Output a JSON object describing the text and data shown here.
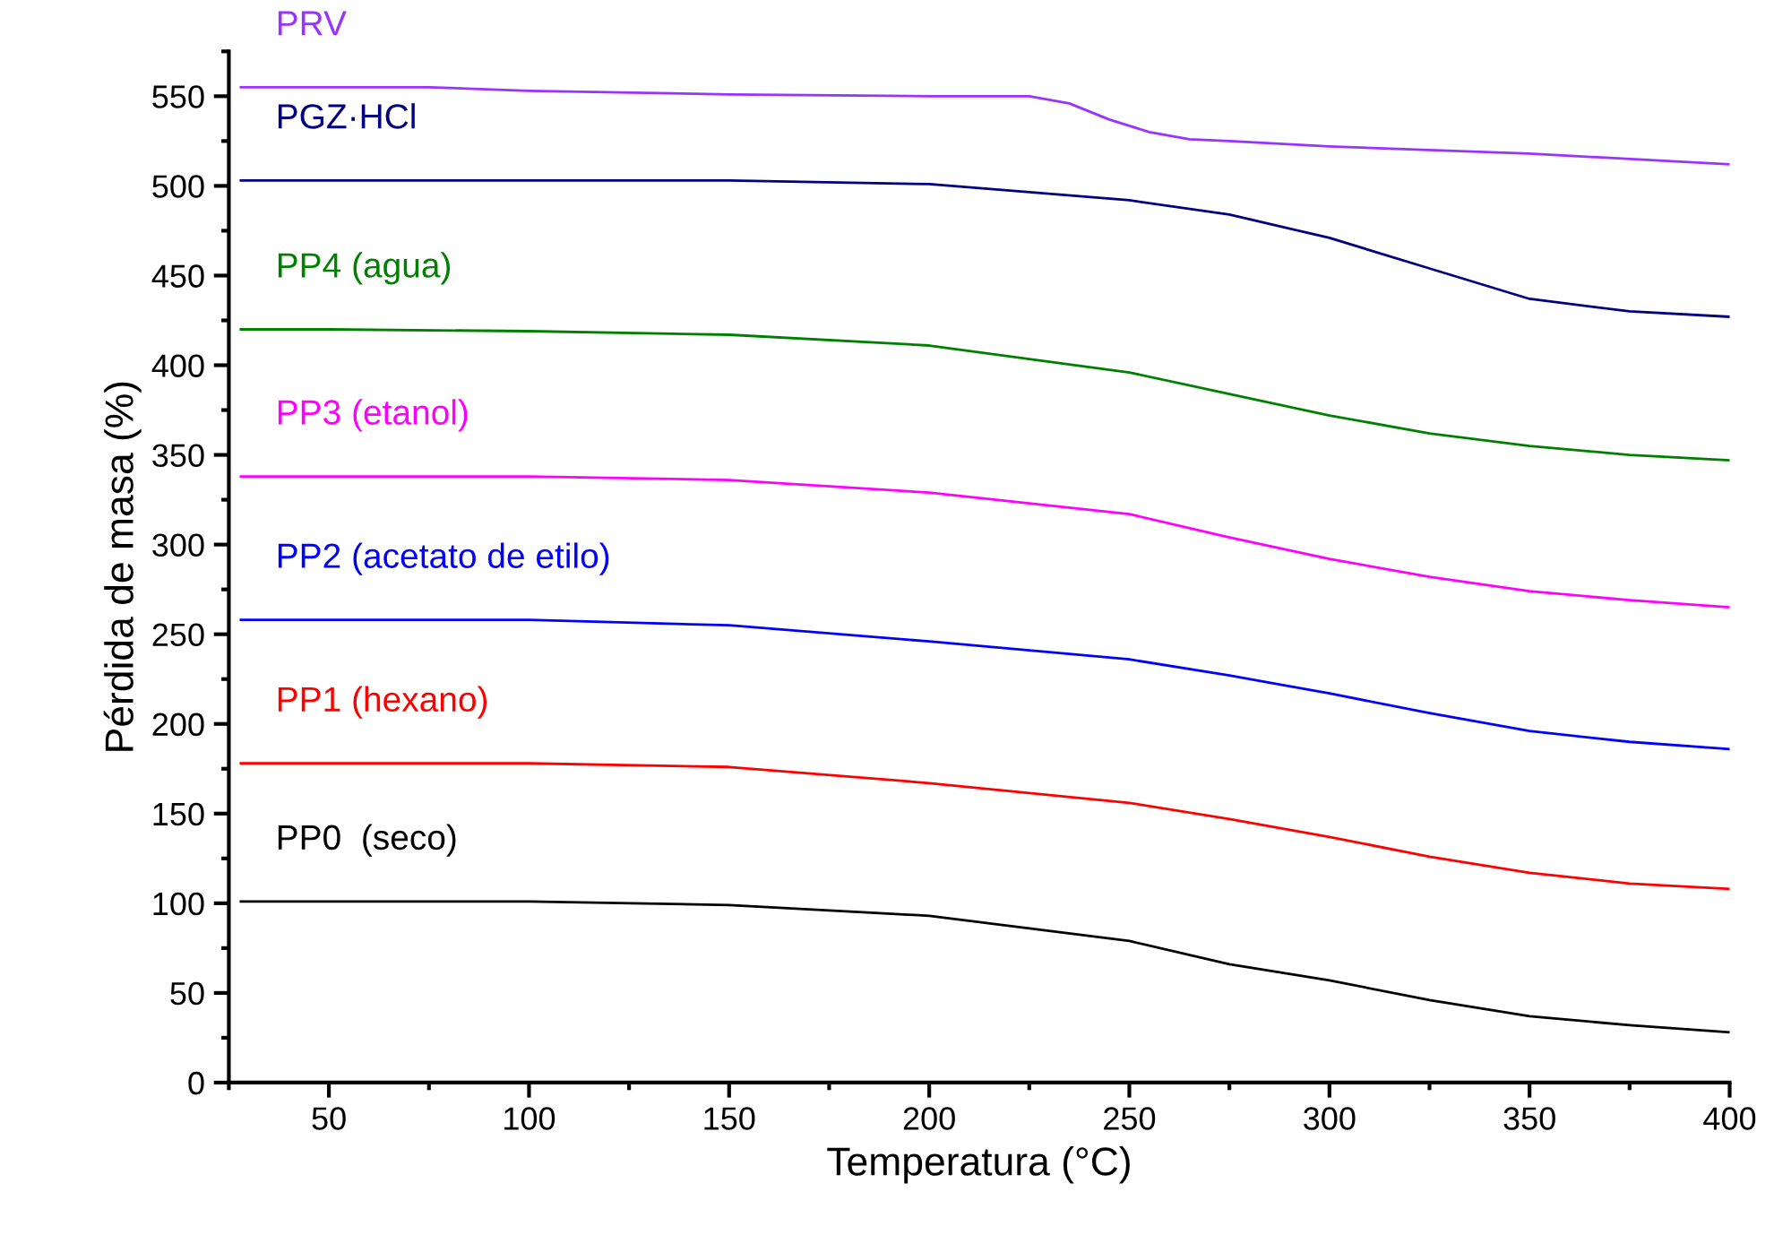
{
  "chart_data": {
    "type": "line",
    "xlabel": "Temperatura (°C)",
    "ylabel": "Pérdida de masa (%)",
    "xlim": [
      25,
      400
    ],
    "ylim": [
      0,
      575
    ],
    "xticks": [
      50,
      100,
      150,
      200,
      250,
      300,
      350,
      400
    ],
    "yticks": [
      0,
      50,
      100,
      150,
      200,
      250,
      300,
      350,
      400,
      450,
      500,
      550
    ],
    "grid": false,
    "legend": false,
    "marker": "none",
    "line_style": "solid",
    "x": [
      28,
      50,
      100,
      150,
      200,
      250,
      275,
      300,
      325,
      350,
      375,
      400
    ],
    "series": [
      {
        "name": "PRV",
        "color": "#9933ff",
        "x": [
          28,
          50,
          75,
          100,
          150,
          200,
          225,
          235,
          245,
          255,
          265,
          275,
          300,
          350,
          400
        ],
        "values": [
          555,
          555,
          555,
          553,
          551,
          550,
          550,
          546,
          537,
          530,
          526,
          525,
          522,
          518,
          512
        ]
      },
      {
        "name": "PGZ·HCl",
        "color": "#000080",
        "values": [
          503,
          503,
          503,
          503,
          501,
          492,
          484,
          471,
          454,
          437,
          430,
          427
        ]
      },
      {
        "name": "PP4 (agua)",
        "color": "#008000",
        "values": [
          420,
          420,
          419,
          417,
          411,
          396,
          384,
          372,
          362,
          355,
          350,
          347
        ]
      },
      {
        "name": "PP3 (etanol)",
        "color": "#ff00ff",
        "values": [
          338,
          338,
          338,
          336,
          329,
          317,
          304,
          292,
          282,
          274,
          269,
          265
        ]
      },
      {
        "name": "PP2 (acetato de etilo)",
        "color": "#0000ff",
        "values": [
          258,
          258,
          258,
          255,
          246,
          236,
          227,
          217,
          206,
          196,
          190,
          186
        ]
      },
      {
        "name": "PP1 (hexano)",
        "color": "#ff0000",
        "values": [
          178,
          178,
          178,
          176,
          167,
          156,
          147,
          137,
          126,
          117,
          111,
          108
        ]
      },
      {
        "name": "PP0  (seco)",
        "color": "#000000",
        "values": [
          101,
          101,
          101,
          99,
          93,
          79,
          66,
          57,
          46,
          37,
          32,
          28
        ]
      }
    ]
  }
}
